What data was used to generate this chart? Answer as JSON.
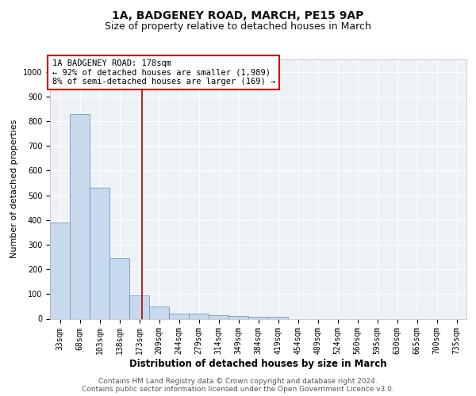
{
  "title1": "1A, BADGENEY ROAD, MARCH, PE15 9AP",
  "title2": "Size of property relative to detached houses in March",
  "xlabel": "Distribution of detached houses by size in March",
  "ylabel": "Number of detached properties",
  "bins": [
    "33sqm",
    "68sqm",
    "103sqm",
    "138sqm",
    "173sqm",
    "209sqm",
    "244sqm",
    "279sqm",
    "314sqm",
    "349sqm",
    "384sqm",
    "419sqm",
    "454sqm",
    "489sqm",
    "524sqm",
    "560sqm",
    "595sqm",
    "630sqm",
    "665sqm",
    "700sqm",
    "735sqm"
  ],
  "values": [
    390,
    830,
    530,
    245,
    95,
    50,
    22,
    22,
    15,
    10,
    8,
    8,
    0,
    0,
    0,
    0,
    0,
    0,
    0,
    0,
    0
  ],
  "bar_color": "#c8d9ed",
  "bar_edge_color": "#5b8db8",
  "vline_color": "#aa0000",
  "ylim": [
    0,
    1050
  ],
  "yticks": [
    0,
    100,
    200,
    300,
    400,
    500,
    600,
    700,
    800,
    900,
    1000
  ],
  "annotation_title": "1A BADGENEY ROAD: 178sqm",
  "annotation_line1": "← 92% of detached houses are smaller (1,989)",
  "annotation_line2": "8% of semi-detached houses are larger (169) →",
  "annotation_box_color": "#cc0000",
  "footer1": "Contains HM Land Registry data © Crown copyright and database right 2024.",
  "footer2": "Contains public sector information licensed under the Open Government Licence v3.0.",
  "bg_color": "#eef2f7",
  "grid_color": "#ffffff",
  "title1_fontsize": 10,
  "title2_fontsize": 9,
  "xlabel_fontsize": 8.5,
  "ylabel_fontsize": 8,
  "tick_fontsize": 7,
  "annotation_fontsize": 7.5,
  "footer_fontsize": 6.5
}
